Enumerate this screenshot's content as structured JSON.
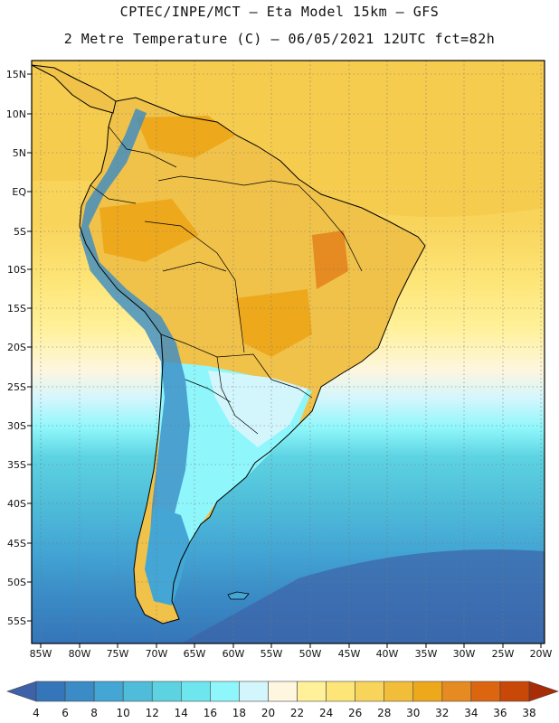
{
  "header": {
    "line1": "CPTEC/INPE/MCT –  Eta Model 15km – GFS",
    "line2": "2 Metre Temperature (C) – 06/05/2021 12UTC fct=82h"
  },
  "map": {
    "lat_labels": [
      "15N",
      "10N",
      "5N",
      "EQ",
      "5S",
      "10S",
      "15S",
      "20S",
      "25S",
      "30S",
      "35S",
      "40S",
      "45S",
      "50S",
      "55S"
    ],
    "lon_labels": [
      "85W",
      "80W",
      "75W",
      "70W",
      "65W",
      "60W",
      "55W",
      "50W",
      "45W",
      "40W",
      "35W",
      "30W",
      "25W",
      "20W"
    ]
  },
  "colorbar": {
    "labels": [
      "4",
      "6",
      "8",
      "10",
      "12",
      "14",
      "16",
      "18",
      "20",
      "22",
      "24",
      "26",
      "28",
      "30",
      "32",
      "34",
      "36",
      "38"
    ],
    "colors": [
      "#3d62a8",
      "#3575b9",
      "#3a8bc6",
      "#43a6d4",
      "#4fbdd9",
      "#5dd3e2",
      "#6ee6ee",
      "#8ff7fb",
      "#d3f6fd",
      "#fef6de",
      "#fff19a",
      "#fde578",
      "#f9d45b",
      "#f2bd39",
      "#eea81c",
      "#e68a22",
      "#dc6610",
      "#c84808",
      "#a82c06"
    ]
  }
}
